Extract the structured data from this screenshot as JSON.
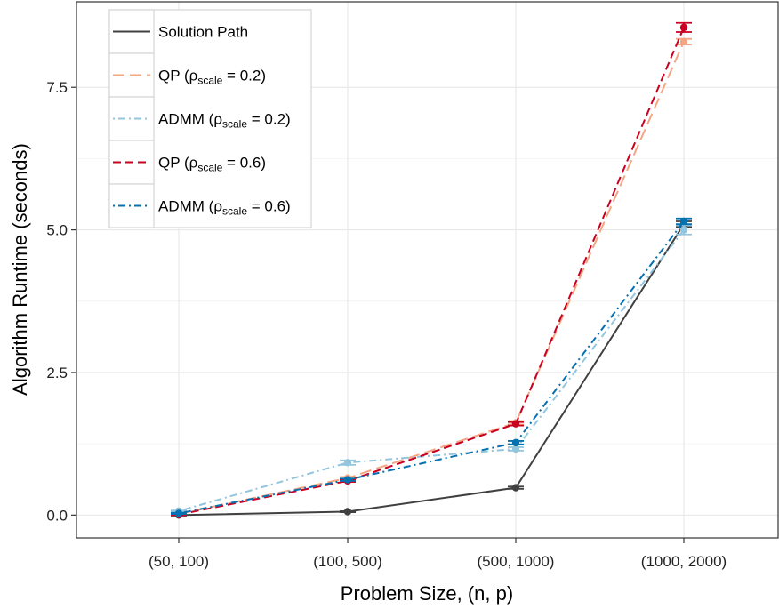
{
  "chart_data": {
    "type": "line",
    "xlabel": "Problem Size, (n, p)",
    "ylabel": "Algorithm Runtime (seconds)",
    "categories": [
      "(50, 100)",
      "(100, 500)",
      "(500, 1000)",
      "(1000, 2000)"
    ],
    "ylim": [
      -0.4,
      9.0
    ],
    "yticks": [
      0.0,
      2.5,
      5.0,
      7.5
    ],
    "ytick_labels": [
      "0.0",
      "2.5",
      "5.0",
      "7.5"
    ],
    "grid": true,
    "legend_position": "top-left",
    "series": [
      {
        "name": "Solution Path",
        "name_parts": [
          "Solution Path",
          "",
          ""
        ],
        "values": [
          0.0,
          0.06,
          0.48,
          5.1
        ],
        "error": [
          0.01,
          0.01,
          0.02,
          0.05
        ],
        "color": "#404040",
        "dash": "solid"
      },
      {
        "name": "QP (ρscale = 0.2)",
        "name_parts": [
          "QP (ρ",
          "scale",
          " = 0.2)"
        ],
        "values": [
          0.02,
          0.65,
          1.62,
          8.3
        ],
        "error": [
          0.01,
          0.02,
          0.03,
          0.05
        ],
        "color": "#F4A582",
        "dash": "long-dash"
      },
      {
        "name": "ADMM (ρscale = 0.2)",
        "name_parts": [
          "ADMM (ρ",
          "scale",
          " = 0.2)"
        ],
        "values": [
          0.07,
          0.92,
          1.16,
          5.0
        ],
        "error": [
          0.01,
          0.04,
          0.03,
          0.08
        ],
        "color": "#92C5DE",
        "dash": "dot-dash"
      },
      {
        "name": "QP (ρscale = 0.6)",
        "name_parts": [
          "QP (ρ",
          "scale",
          " = 0.6)"
        ],
        "values": [
          0.01,
          0.6,
          1.6,
          8.55
        ],
        "error": [
          0.01,
          0.02,
          0.03,
          0.08
        ],
        "color": "#CA0020",
        "dash": "dash"
      },
      {
        "name": "ADMM (ρscale = 0.6)",
        "name_parts": [
          "ADMM (ρ",
          "scale",
          " = 0.6)"
        ],
        "values": [
          0.03,
          0.62,
          1.27,
          5.15
        ],
        "error": [
          0.01,
          0.02,
          0.03,
          0.05
        ],
        "color": "#0571B0",
        "dash": "dot-dash"
      }
    ]
  }
}
